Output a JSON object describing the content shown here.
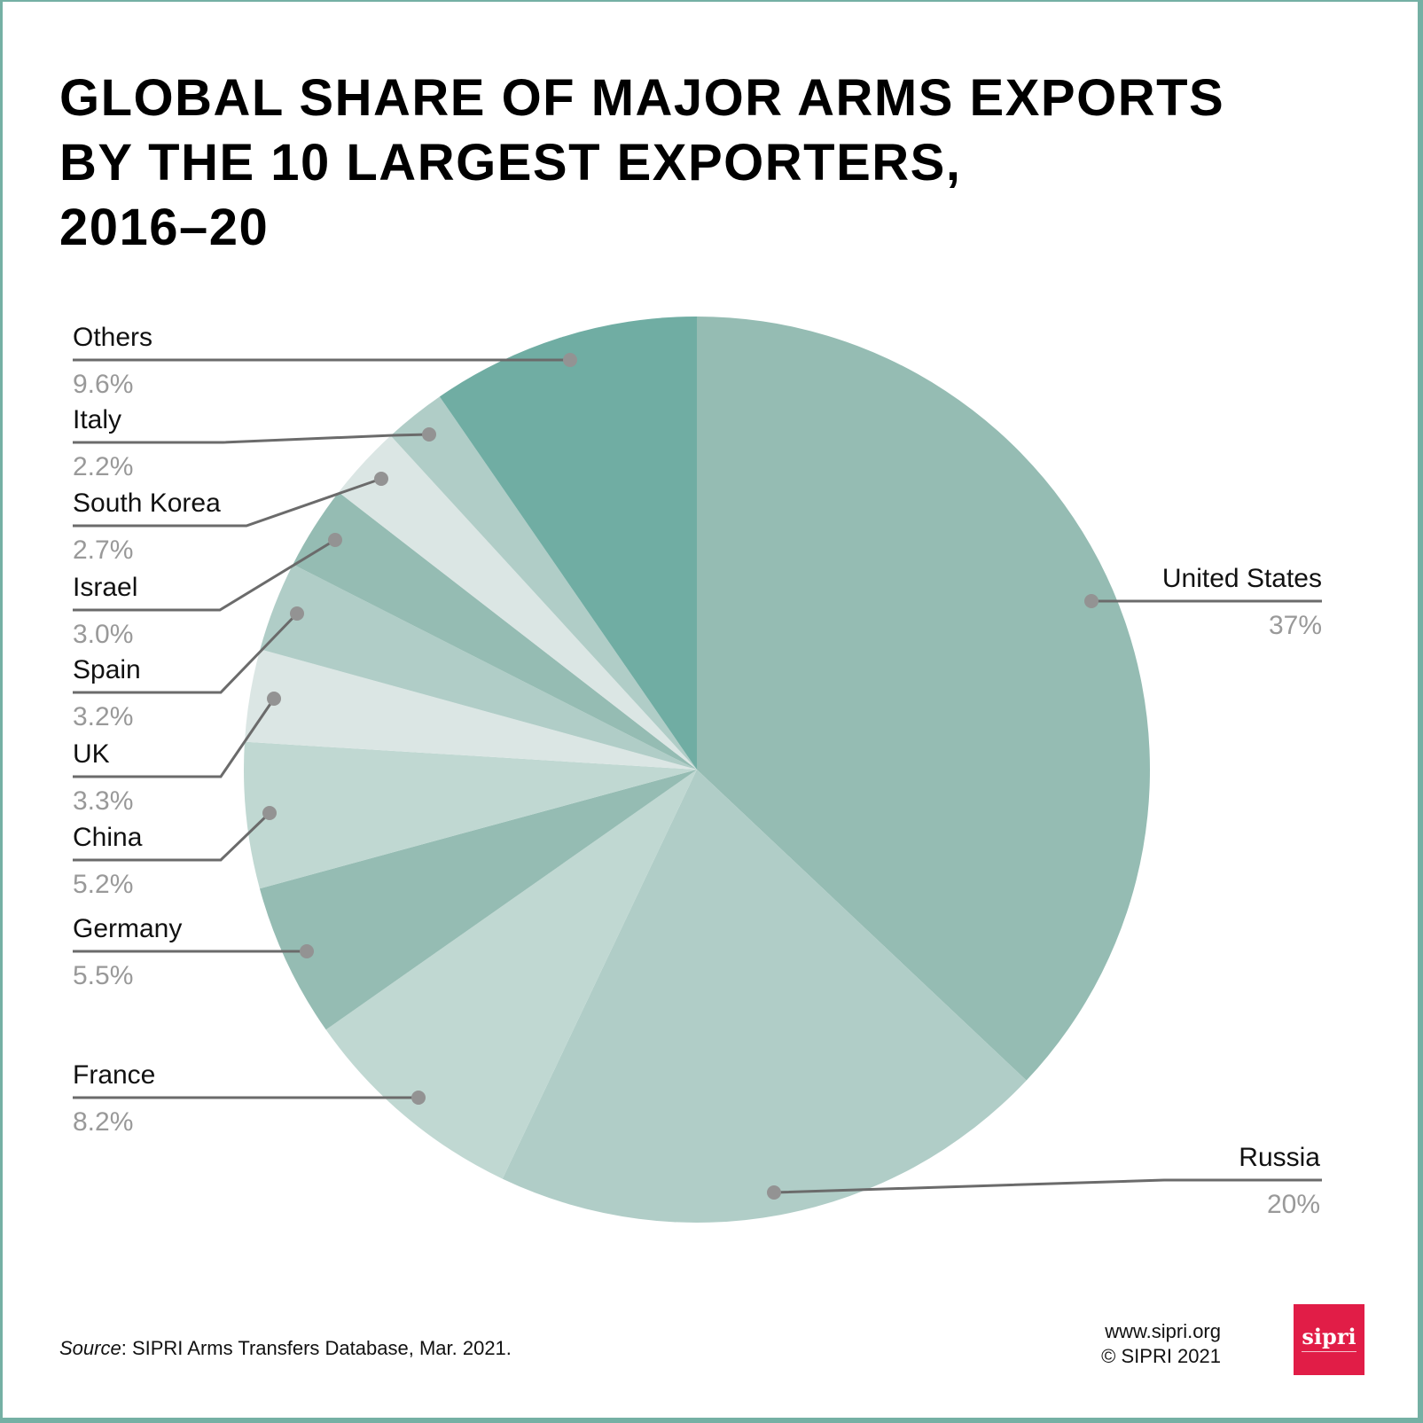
{
  "title": [
    "GLOBAL SHARE OF MAJOR ARMS EXPORTS",
    "BY THE 10 LARGEST EXPORTERS,",
    "2016–20"
  ],
  "chart_data": {
    "type": "pie",
    "title": "GLOBAL SHARE OF MAJOR ARMS EXPORTS BY THE 10 LARGEST EXPORTERS, 2016–20",
    "start": "top, clockwise",
    "slices": [
      {
        "label": "United States",
        "value": 37,
        "display": "37%",
        "color": "#95bcb3"
      },
      {
        "label": "Russia",
        "value": 20,
        "display": "20%",
        "color": "#b0cdc7"
      },
      {
        "label": "France",
        "value": 8.2,
        "display": "8.2%",
        "color": "#c0d8d2"
      },
      {
        "label": "Germany",
        "value": 5.5,
        "display": "5.5%",
        "color": "#95bcb3"
      },
      {
        "label": "China",
        "value": 5.2,
        "display": "5.2%",
        "color": "#c0d8d2"
      },
      {
        "label": "UK",
        "value": 3.3,
        "display": "3.3%",
        "color": "#dbe6e4"
      },
      {
        "label": "Spain",
        "value": 3.2,
        "display": "3.2%",
        "color": "#b0cdc7"
      },
      {
        "label": "Israel",
        "value": 3.0,
        "display": "3.0%",
        "color": "#95bcb3"
      },
      {
        "label": "South Korea",
        "value": 2.7,
        "display": "2.7%",
        "color": "#dbe6e4"
      },
      {
        "label": "Italy",
        "value": 2.2,
        "display": "2.2%",
        "color": "#b0cdc7"
      },
      {
        "label": "Others",
        "value": 9.6,
        "display": "9.6%",
        "color": "#70ada3"
      }
    ]
  },
  "footer": {
    "source_label": "Source",
    "source_text": ": SIPRI Arms Transfers Database, Mar. 2021.",
    "website": "www.sipri.org",
    "copyright": "© SIPRI 2021",
    "logo": "sipri"
  },
  "colors": {
    "border": "#75b0a4",
    "logo_bg": "#e11d47",
    "leader": "#6b6b6b",
    "dot": "#939393",
    "percent_text": "#999999"
  }
}
